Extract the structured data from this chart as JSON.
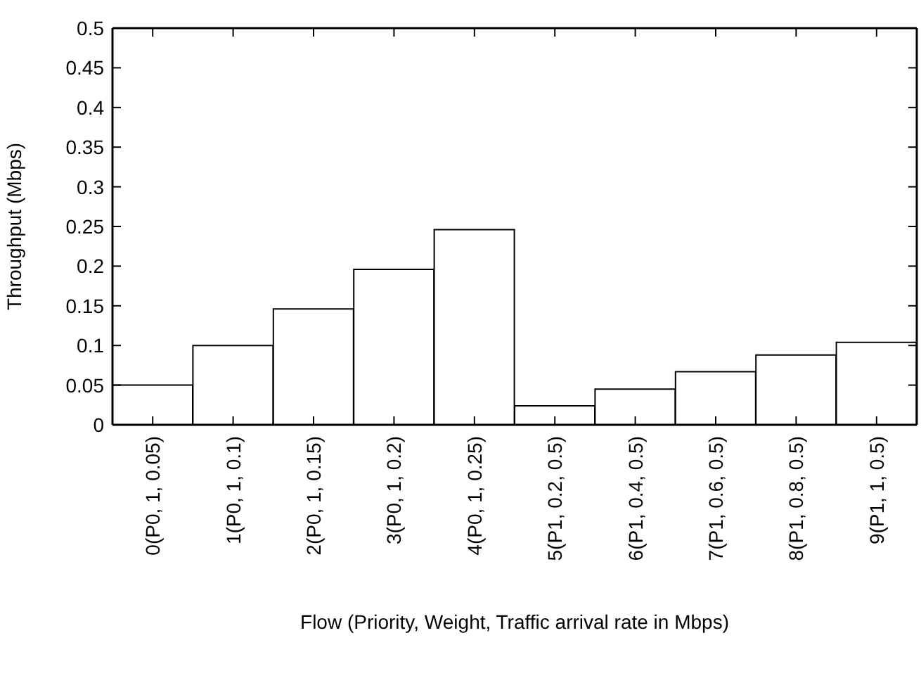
{
  "chart_data": {
    "type": "bar",
    "xlabel": "Flow (Priority, Weight, Traffic arrival rate in Mbps)",
    "ylabel": "Throughput (Mbps)",
    "categories": [
      "0(P0, 1, 0.05)",
      "1(P0, 1, 0.1)",
      "2(P0, 1, 0.15)",
      "3(P0, 1, 0.2)",
      "4(P0, 1, 0.25)",
      "5(P1, 0.2, 0.5)",
      "6(P1, 0.4, 0.5)",
      "7(P1, 0.6, 0.5)",
      "8(P1, 0.8, 0.5)",
      "9(P1, 1, 0.5)"
    ],
    "values": [
      0.05,
      0.1,
      0.146,
      0.196,
      0.246,
      0.024,
      0.045,
      0.067,
      0.088,
      0.104
    ],
    "color": "#ffffff",
    "ylim": [
      0,
      0.5
    ],
    "yticks": [
      0,
      0.05,
      0.1,
      0.15,
      0.2,
      0.25,
      0.3,
      0.35,
      0.4,
      0.45,
      0.5
    ],
    "grid": false,
    "legend": false
  }
}
